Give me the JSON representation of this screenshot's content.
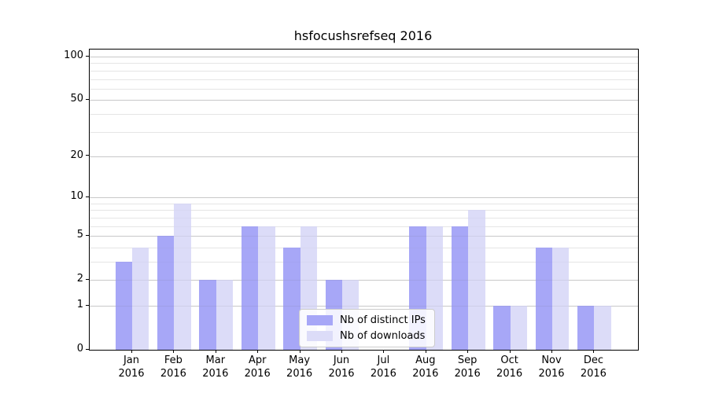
{
  "chart_data": {
    "type": "bar",
    "title": "hsfocushsrefseq 2016",
    "categories": [
      "Jan",
      "Feb",
      "Mar",
      "Apr",
      "May",
      "Jun",
      "Jul",
      "Aug",
      "Sep",
      "Oct",
      "Nov",
      "Dec"
    ],
    "category_year": "2016",
    "series": [
      {
        "name": "Nb of distinct IPs",
        "color": "#a7a7f7",
        "values": [
          3,
          5,
          2,
          6,
          4,
          2,
          0,
          6,
          6,
          1,
          4,
          1
        ]
      },
      {
        "name": "Nb of downloads",
        "color": "#dcdcf8",
        "values": [
          4,
          9,
          2,
          6,
          6,
          2,
          0,
          6,
          8,
          1,
          4,
          1
        ]
      }
    ],
    "yaxis": {
      "scale": "log1p",
      "major_ticks": [
        0,
        1,
        2,
        5,
        10,
        20,
        50,
        100
      ],
      "minor_ticks": [
        3,
        4,
        6,
        7,
        8,
        9,
        30,
        40,
        60,
        70,
        80,
        90
      ],
      "range_max": 112
    },
    "xlabel": "",
    "ylabel": "",
    "grid": true,
    "legend_position": "lower center"
  },
  "colors": {
    "background": "#ffffff",
    "axis_frame": "#000000",
    "major_grid": "#d5d5d5",
    "minor_grid": "#ebebeb",
    "text": "#000000"
  }
}
